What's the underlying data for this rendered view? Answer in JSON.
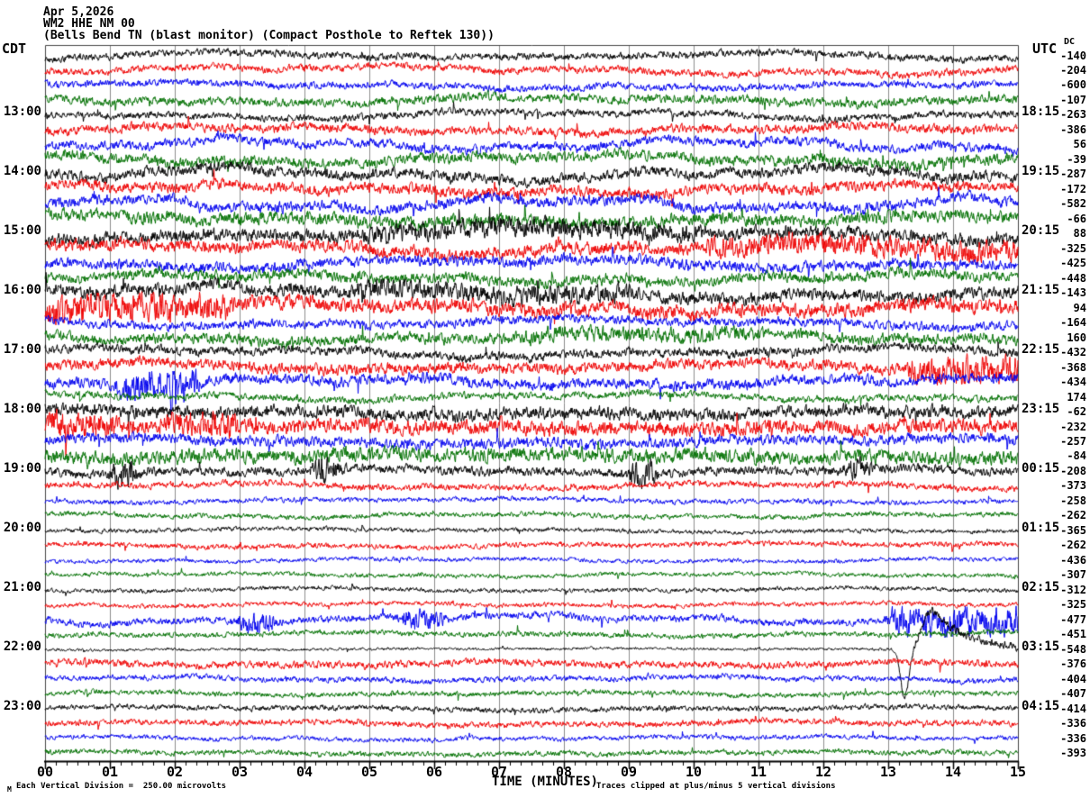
{
  "header": {
    "date": "Apr 5,2026",
    "station": "WM2 HHE NM 00",
    "description": "(Bells Bend TN (blast monitor) (Compact Posthole to Reftek 130))"
  },
  "axes": {
    "left_label": "CDT",
    "right_label": "UTC",
    "dc_label": "DC",
    "x_title": "TIME (MINUTES)"
  },
  "footer": {
    "scale_note": "Each Vertical Division =  250.00 microvolts",
    "clip_note": "Traces clipped at plus/minus 5 vertical divisions",
    "corner_mark": "M"
  },
  "chart_data": {
    "type": "line",
    "subtype": "helicorder-seismogram",
    "xlabel": "TIME (MINUTES)",
    "x_range": [
      0,
      15
    ],
    "x_ticks": [
      "00",
      "01",
      "02",
      "03",
      "04",
      "05",
      "06",
      "07",
      "08",
      "09",
      "10",
      "11",
      "12",
      "13",
      "14",
      "15"
    ],
    "minor_ticks_per_minute": 6,
    "row_time_span_minutes": 15,
    "vertical_division_microvolts": 250.0,
    "clip_divisions": 5,
    "grid": true,
    "grid_color": "#8c8c8c",
    "border_color": "#444444",
    "palette": {
      "k": "#000000",
      "r": "#ee0000",
      "b": "#0000ee",
      "g": "#007000"
    },
    "rows": [
      {
        "c": "k",
        "dc": -140,
        "w": 5,
        "n": 2
      },
      {
        "c": "r",
        "dc": -204,
        "w": 6,
        "n": 2
      },
      {
        "c": "b",
        "dc": -600,
        "w": 5,
        "n": 2
      },
      {
        "c": "g",
        "dc": -107,
        "w": 5,
        "n": 2.5
      },
      {
        "c": "k",
        "cdt": "13:00",
        "utc": "18:15",
        "dc": -263,
        "w": 6,
        "n": 2
      },
      {
        "c": "r",
        "dc": -386,
        "w": 5,
        "n": 2.5
      },
      {
        "c": "b",
        "dc": 56,
        "w": 8,
        "n": 2.5
      },
      {
        "c": "g",
        "dc": -39,
        "w": 7,
        "n": 3
      },
      {
        "c": "k",
        "cdt": "14:00",
        "utc": "19:15",
        "dc": -287,
        "w": 9,
        "n": 3
      },
      {
        "c": "r",
        "dc": -172,
        "w": 7,
        "n": 3
      },
      {
        "c": "b",
        "dc": -582,
        "w": 9,
        "n": 3
      },
      {
        "c": "g",
        "dc": -66,
        "w": 7,
        "n": 3.5
      },
      {
        "c": "k",
        "cdt": "15:00",
        "utc": "20:15",
        "dc": 88,
        "w": 9,
        "n": 3.5,
        "ev": [
          [
            5,
            10,
            1.6
          ]
        ]
      },
      {
        "c": "r",
        "dc": -325,
        "w": 8,
        "n": 3.5,
        "ev": [
          [
            10.3,
            15,
            1.7
          ]
        ]
      },
      {
        "c": "b",
        "dc": -425,
        "w": 7,
        "n": 3
      },
      {
        "c": "g",
        "dc": -448,
        "w": 7,
        "n": 3
      },
      {
        "c": "k",
        "cdt": "16:00",
        "utc": "21:15",
        "dc": -143,
        "w": 9,
        "n": 3.5,
        "ev": [
          [
            4.8,
            9,
            1.5
          ]
        ]
      },
      {
        "c": "r",
        "dc": 94,
        "w": 8,
        "n": 4,
        "ev": [
          [
            0,
            2.8,
            2
          ]
        ]
      },
      {
        "c": "b",
        "dc": -164,
        "w": 6,
        "n": 2.5
      },
      {
        "c": "g",
        "dc": 160,
        "w": 7,
        "n": 3,
        "ev": [
          [
            7.3,
            11,
            1.5
          ]
        ]
      },
      {
        "c": "k",
        "cdt": "17:00",
        "utc": "22:15",
        "dc": -432,
        "w": 7,
        "n": 2.5
      },
      {
        "c": "r",
        "dc": -368,
        "w": 6,
        "n": 3,
        "ev": [
          [
            13.4,
            15,
            2.6
          ]
        ]
      },
      {
        "c": "b",
        "dc": -434,
        "w": 6,
        "n": 3,
        "ev": [
          [
            1.2,
            2.3,
            2.6
          ]
        ],
        "sp": [
          [
            1.95,
            -42
          ]
        ]
      },
      {
        "c": "g",
        "dc": 174,
        "w": 5,
        "n": 2
      },
      {
        "c": "k",
        "cdt": "18:00",
        "utc": "23:15",
        "dc": -62,
        "w": 5,
        "n": 3.5
      },
      {
        "c": "r",
        "dc": -232,
        "w": 4,
        "n": 4,
        "ev": [
          [
            0,
            1,
            1.8
          ],
          [
            1.9,
            2.9,
            1.8
          ]
        ]
      },
      {
        "c": "b",
        "dc": -257,
        "w": 5,
        "n": 3
      },
      {
        "c": "g",
        "dc": -84,
        "w": 4,
        "n": 4
      },
      {
        "c": "k",
        "cdt": "19:00",
        "utc": "00:15",
        "dc": -208,
        "w": 4,
        "n": 2.5,
        "ev": [
          [
            1.1,
            1.35,
            3
          ],
          [
            4.2,
            4.45,
            3
          ],
          [
            9.1,
            9.35,
            3
          ],
          [
            12.4,
            12.65,
            2.5
          ]
        ]
      },
      {
        "c": "r",
        "dc": -373,
        "w": 4,
        "n": 1.8
      },
      {
        "c": "b",
        "dc": -258,
        "w": 3,
        "n": 1.4
      },
      {
        "c": "g",
        "dc": -262,
        "w": 3,
        "n": 1.4
      },
      {
        "c": "k",
        "cdt": "20:00",
        "utc": "01:15",
        "dc": -365,
        "w": 2.5,
        "n": 1.2
      },
      {
        "c": "r",
        "dc": -262,
        "w": 3,
        "n": 1.5
      },
      {
        "c": "b",
        "dc": -436,
        "w": 2.5,
        "n": 1.2
      },
      {
        "c": "g",
        "dc": -307,
        "w": 2.5,
        "n": 1.2
      },
      {
        "c": "k",
        "cdt": "21:00",
        "utc": "02:15",
        "dc": -312,
        "w": 2.5,
        "n": 1.2
      },
      {
        "c": "r",
        "dc": -325,
        "w": 2.5,
        "n": 1.3
      },
      {
        "c": "b",
        "dc": -477,
        "w": 6,
        "n": 2,
        "ev": [
          [
            3.05,
            3.45,
            3
          ],
          [
            5.55,
            6.05,
            3
          ],
          [
            13.1,
            15,
            4.2
          ]
        ]
      },
      {
        "c": "g",
        "dc": -451,
        "w": 3,
        "n": 1.5
      },
      {
        "c": "k",
        "cdt": "22:00",
        "utc": "03:15",
        "dc": -548,
        "w": 1.2,
        "n": 0.8,
        "tr": 1,
        "ev": [
          [
            13.3,
            15,
            3
          ]
        ]
      },
      {
        "c": "r",
        "dc": -376,
        "w": 3,
        "n": 2
      },
      {
        "c": "b",
        "dc": -404,
        "w": 3,
        "n": 1.6
      },
      {
        "c": "g",
        "dc": -407,
        "w": 2.5,
        "n": 1.4
      },
      {
        "c": "k",
        "cdt": "23:00",
        "utc": "04:15",
        "dc": -414,
        "w": 2.5,
        "n": 1.5
      },
      {
        "c": "r",
        "dc": -336,
        "w": 3,
        "n": 1.7
      },
      {
        "c": "b",
        "dc": -336,
        "w": 2.5,
        "n": 1.3
      },
      {
        "c": "g",
        "dc": -393,
        "w": 2.5,
        "n": 1.5
      }
    ]
  }
}
